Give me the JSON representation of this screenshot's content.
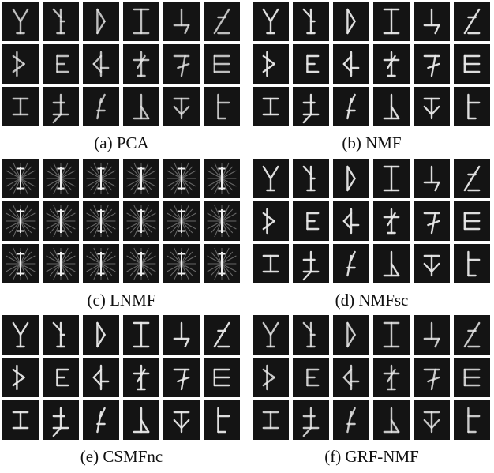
{
  "panels": [
    {
      "caption": "(a) PCA"
    },
    {
      "caption": "(b) NMF"
    },
    {
      "caption": "(c) LNMF"
    },
    {
      "caption": "(d) NMFsc"
    },
    {
      "caption": "(e) CSMFnc"
    },
    {
      "caption": "(f) GRF-NMF"
    }
  ]
}
